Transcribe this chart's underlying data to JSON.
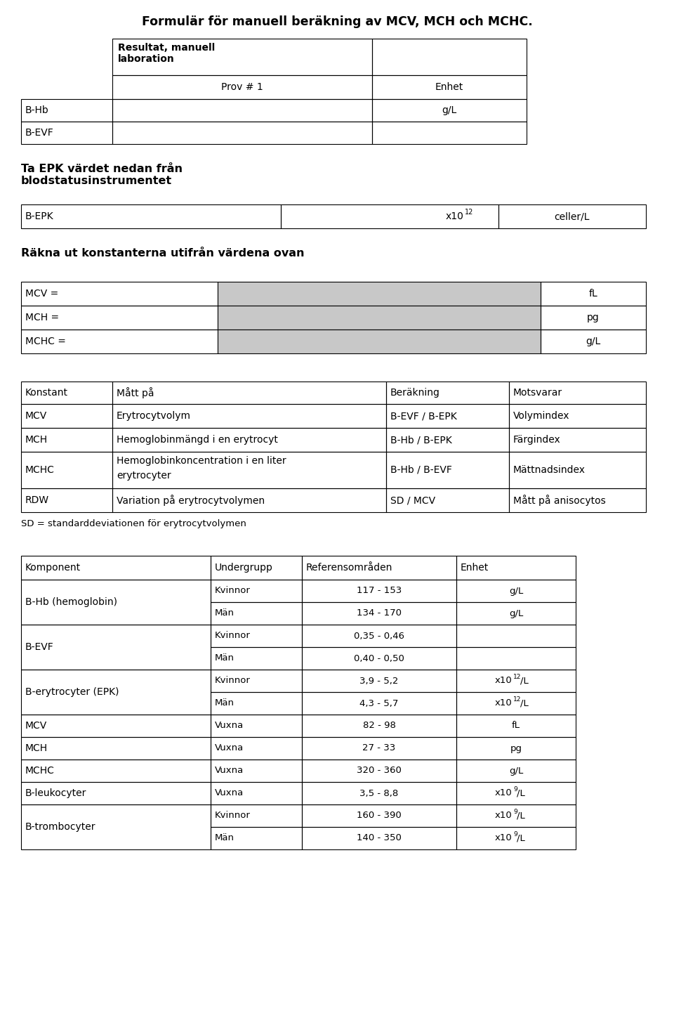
{
  "title": "Formulär för manuell beräkning av MCV, MCH och MCHC.",
  "bg_color": "#ffffff",
  "text_color": "#000000",
  "gray_fill": "#c8c8c8",
  "line_color": "#000000",
  "title_fontsize": 12.5,
  "body_fontsize": 10,
  "small_fontsize": 9.5,
  "heading_fontsize": 11.5,
  "s1_header": "Resultat, manuell\nlaboration",
  "s1_sub": "Prov # 1",
  "s1_enhet": "Enhet",
  "s1_rows": [
    [
      "B-Hb",
      "g/L"
    ],
    [
      "B-EVF",
      ""
    ]
  ],
  "s2_heading": "Ta EPK värdet nedan från\nblodstatusinstrumentet",
  "s2_row": [
    "B-EPK",
    "celler/L"
  ],
  "s3_heading": "Räkna ut konstanterna utifrån värdena ovan",
  "s3_rows": [
    [
      "MCV =",
      "fL"
    ],
    [
      "MCH =",
      "pg"
    ],
    [
      "MCHC =",
      "g/L"
    ]
  ],
  "s4_headers": [
    "Konstant",
    "Mått på",
    "Beräkning",
    "Motsvarar"
  ],
  "s4_rows": [
    [
      "MCV",
      "Erytrocytvolym",
      "B-EVF / B-EPK",
      "Volymindex"
    ],
    [
      "MCH",
      "Hemoglobinmängd i en erytrocyt",
      "B-Hb / B-EPK",
      "Färgindex"
    ],
    [
      "MCHC",
      "Hemoglobinkoncentration i en liter\nerytrocyter",
      "B-Hb / B-EVF",
      "Mättnadsindex"
    ],
    [
      "RDW",
      "Variation på erytrocytvolymen",
      "SD / MCV",
      "Mått på anisocytos"
    ]
  ],
  "s4_note": "SD = standarddeviationen för erytrocytvolymen",
  "s5_headers": [
    "Komponent",
    "Undergrupp",
    "Referensområden",
    "Enhet"
  ],
  "s5_groups": [
    {
      "label": "B-Hb (hemoglobin)",
      "rows": [
        [
          "Kvinnor",
          "117 - 153",
          "g/L"
        ],
        [
          "Män",
          "134 - 170",
          "g/L"
        ]
      ]
    },
    {
      "label": "B-EVF",
      "rows": [
        [
          "Kvinnor",
          "0,35 - 0,46",
          ""
        ],
        [
          "Män",
          "0,40 - 0,50",
          ""
        ]
      ]
    },
    {
      "label": "B-erytrocyter (EPK)",
      "rows": [
        [
          "Kvinnor",
          "3,9 - 5,2",
          "12"
        ],
        [
          "Män",
          "4,3 - 5,7",
          "12"
        ]
      ]
    },
    {
      "label": "MCV",
      "rows": [
        [
          "Vuxna",
          "82 - 98",
          "fL"
        ]
      ]
    },
    {
      "label": "MCH",
      "rows": [
        [
          "Vuxna",
          "27 - 33",
          "pg"
        ]
      ]
    },
    {
      "label": "MCHC",
      "rows": [
        [
          "Vuxna",
          "320 - 360",
          "g/L"
        ]
      ]
    },
    {
      "label": "B-leukocyter",
      "rows": [
        [
          "Vuxna",
          "3,5 - 8,8",
          "9"
        ]
      ]
    },
    {
      "label": "B-trombocyter",
      "rows": [
        [
          "Kvinnor",
          "160 - 390",
          "9"
        ],
        [
          "Män",
          "140 - 350",
          "9"
        ]
      ]
    }
  ]
}
